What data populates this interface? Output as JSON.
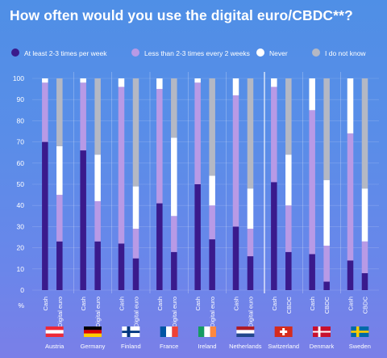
{
  "chart_data": {
    "type": "bar",
    "title": "How often would you use the digital euro/CBDC**?",
    "y_unit": "%",
    "ylim": [
      0,
      100
    ],
    "yticks": [
      0,
      10,
      20,
      30,
      40,
      50,
      60,
      70,
      80,
      90,
      100
    ],
    "stacked": true,
    "legend_position": "top",
    "series": [
      {
        "name": "At least 2-3 times per week",
        "color": "#3a1a8c"
      },
      {
        "name": "Less than 2-3 times every 2 weeks",
        "color": "#b89ae6"
      },
      {
        "name": "Never",
        "color": "#ffffff"
      },
      {
        "name": "I do not know",
        "color": "#b4b8c4"
      }
    ],
    "countries": [
      {
        "name": "Austria",
        "flag": "austria-flag",
        "bars": [
          {
            "label": "Cash",
            "values": [
              70,
              28,
              2,
              0
            ]
          },
          {
            "label": "Digital euro",
            "values": [
              23,
              22,
              23,
              32
            ]
          }
        ]
      },
      {
        "name": "Germany",
        "flag": "germany-flag",
        "bars": [
          {
            "label": "Cash",
            "values": [
              66,
              32,
              2,
              0
            ]
          },
          {
            "label": "Digital euro",
            "values": [
              23,
              19,
              22,
              36
            ]
          }
        ]
      },
      {
        "name": "Finland",
        "flag": "finland-flag",
        "bars": [
          {
            "label": "Cash",
            "values": [
              22,
              74,
              4,
              0
            ]
          },
          {
            "label": "Digital euro",
            "values": [
              15,
              14,
              20,
              51
            ]
          }
        ]
      },
      {
        "name": "France",
        "flag": "france-flag",
        "bars": [
          {
            "label": "Cash",
            "values": [
              41,
              54,
              5,
              0
            ]
          },
          {
            "label": "Digital euro",
            "values": [
              18,
              17,
              37,
              28
            ]
          }
        ]
      },
      {
        "name": "Ireland",
        "flag": "ireland-flag",
        "bars": [
          {
            "label": "Cash",
            "values": [
              50,
              48,
              2,
              0
            ]
          },
          {
            "label": "Digital euro",
            "values": [
              24,
              16,
              14,
              46
            ]
          }
        ]
      },
      {
        "name": "Netherlands",
        "flag": "netherlands-flag",
        "bars": [
          {
            "label": "Cash",
            "values": [
              30,
              62,
              8,
              0
            ]
          },
          {
            "label": "Digital euro",
            "values": [
              16,
              13,
              19,
              52
            ]
          }
        ]
      },
      {
        "name": "Switzerland",
        "flag": "switzerland-flag",
        "bars": [
          {
            "label": "Cash",
            "values": [
              51,
              45,
              4,
              0
            ]
          },
          {
            "label": "CBDC",
            "values": [
              18,
              22,
              24,
              36
            ]
          }
        ]
      },
      {
        "name": "Denmark",
        "flag": "denmark-flag",
        "bars": [
          {
            "label": "Cash",
            "values": [
              17,
              68,
              15,
              0
            ]
          },
          {
            "label": "CBDC",
            "values": [
              4,
              17,
              31,
              48
            ]
          }
        ]
      },
      {
        "name": "Sweden",
        "flag": "sweden-flag",
        "bars": [
          {
            "label": "Cash",
            "values": [
              14,
              60,
              26,
              0
            ]
          },
          {
            "label": "CBDC",
            "values": [
              8,
              15,
              25,
              52
            ]
          }
        ]
      }
    ]
  }
}
